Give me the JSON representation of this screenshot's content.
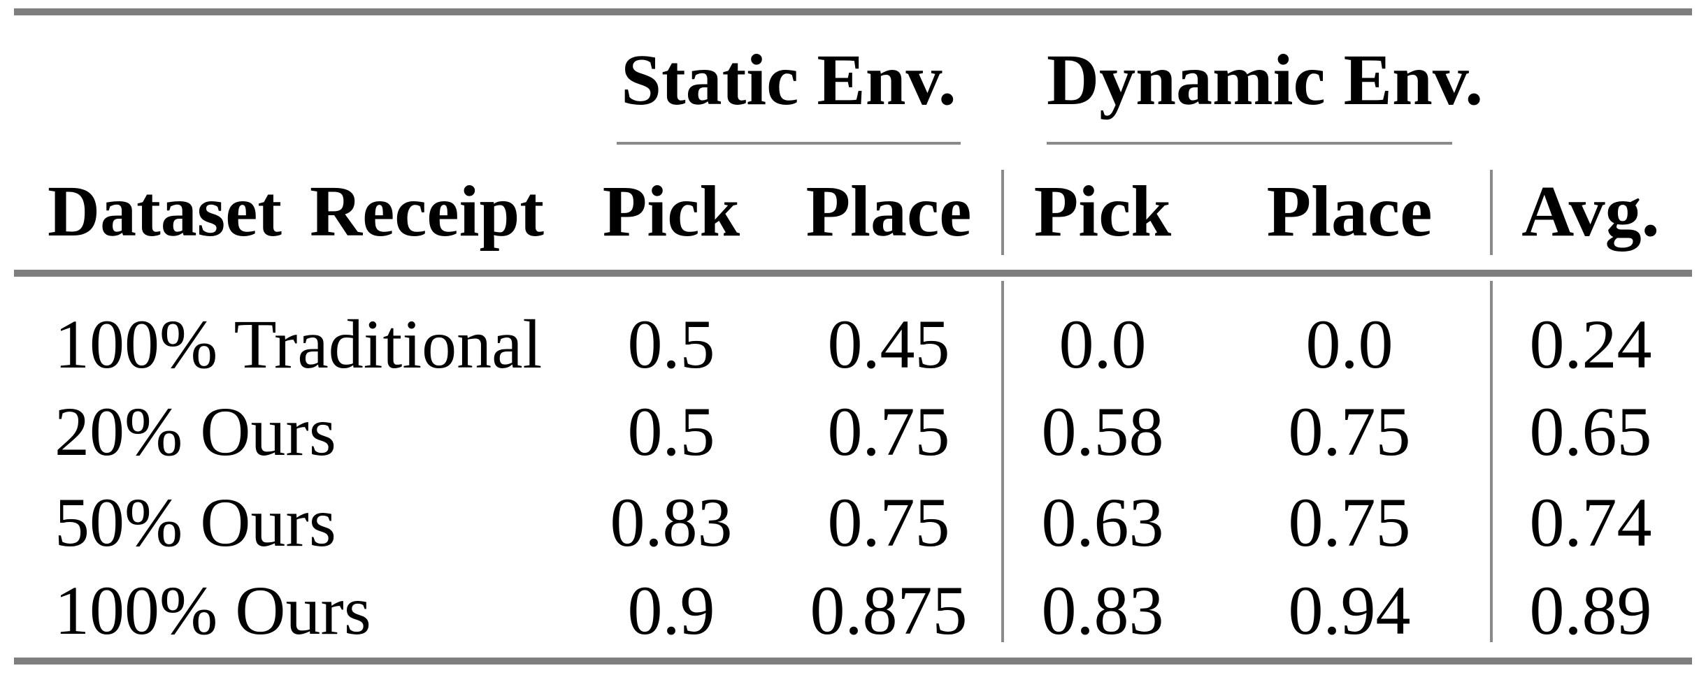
{
  "page": {
    "background": "#ffffff",
    "text_color": "#000000",
    "thick_rule_color": "#7e7e7e",
    "thin_line_color": "#8a8a8a"
  },
  "table": {
    "column_groups": [
      {
        "label": "Static Env.",
        "columns": [
          "Pick",
          "Place"
        ]
      },
      {
        "label": "Dynamic Env.",
        "columns": [
          "Pick",
          "Place"
        ]
      }
    ],
    "header": {
      "row_label": "Dataset Receipt",
      "static_pick": "Pick",
      "static_place": "Place",
      "dynamic_pick": "Pick",
      "dynamic_place": "Place",
      "avg": "Avg."
    },
    "rows": [
      {
        "label": "100% Traditional",
        "static_pick": "0.5",
        "static_place": "0.45",
        "dynamic_pick": "0.0",
        "dynamic_place": "0.0",
        "avg": "0.24"
      },
      {
        "label": "20% Ours",
        "static_pick": "0.5",
        "static_place": "0.75",
        "dynamic_pick": "0.58",
        "dynamic_place": "0.75",
        "avg": "0.65"
      },
      {
        "label": "50% Ours",
        "static_pick": "0.83",
        "static_place": "0.75",
        "dynamic_pick": "0.63",
        "dynamic_place": "0.75",
        "avg": "0.74"
      },
      {
        "label": "100% Ours",
        "static_pick": "0.9",
        "static_place": "0.875",
        "dynamic_pick": "0.83",
        "dynamic_place": "0.94",
        "avg": "0.89"
      }
    ]
  },
  "chart_data": {
    "type": "table",
    "title": "",
    "column_group_labels": [
      "Static Env.",
      "Dynamic Env."
    ],
    "columns": [
      "Dataset Receipt",
      "Static Env. Pick",
      "Static Env. Place",
      "Dynamic Env. Pick",
      "Dynamic Env. Place",
      "Avg."
    ],
    "rows": [
      [
        "100% Traditional",
        0.5,
        0.45,
        0.0,
        0.0,
        0.24
      ],
      [
        "20% Ours",
        0.5,
        0.75,
        0.58,
        0.75,
        0.65
      ],
      [
        "50% Ours",
        0.83,
        0.75,
        0.63,
        0.75,
        0.74
      ],
      [
        "100% Ours",
        0.9,
        0.875,
        0.83,
        0.94,
        0.89
      ]
    ]
  }
}
